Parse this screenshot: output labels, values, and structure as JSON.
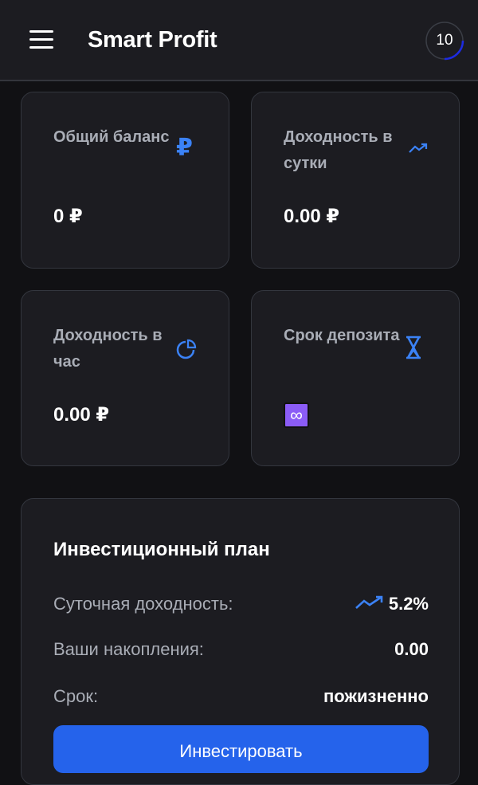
{
  "header": {
    "title": "Smart Profit",
    "badge": "10",
    "badge_progress": 0.25
  },
  "cards": [
    {
      "label": "Общий баланс",
      "value": "0 ₽",
      "icon": "ruble-icon"
    },
    {
      "label": "Доходность в сутки",
      "value": "0.00 ₽",
      "icon": "trending-up-icon"
    },
    {
      "label": "Доходность в час",
      "value": "0.00 ₽",
      "icon": "pie-chart-icon"
    },
    {
      "label": "Срок депозита",
      "value": "∞",
      "icon": "hourglass-icon"
    }
  ],
  "plan": {
    "title": "Инвестиционный план",
    "rows": [
      {
        "label": "Суточная доходность:",
        "value": "5.2%"
      },
      {
        "label": "Ваши накопления:",
        "value": "0.00"
      },
      {
        "label": "Срок:",
        "value": "пожизненно"
      }
    ],
    "button": "Инвестировать"
  },
  "colors": {
    "accent": "#3b82f6",
    "button": "#2563eb",
    "infinity": "#8b5cf6"
  }
}
